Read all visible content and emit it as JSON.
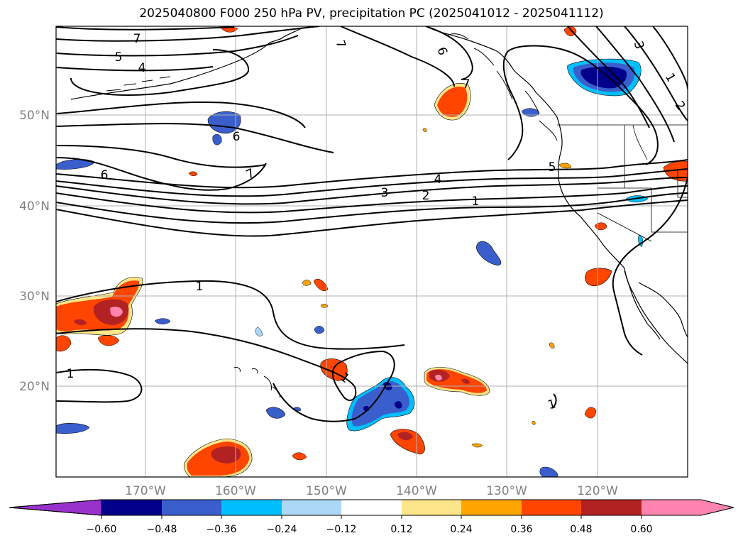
{
  "title": "2025040800 F000 250 hPa PV, precipitation PC (2025041012 - 2025041112)",
  "map": {
    "lat_labels": [
      "50°N",
      "40°N",
      "30°N",
      "20°N"
    ],
    "lon_labels": [
      "170°W",
      "160°W",
      "150°W",
      "140°W",
      "130°W",
      "120°W"
    ],
    "grid": true
  },
  "pv_contour_labels": [
    "7",
    "5",
    "4",
    "6",
    "7",
    "6",
    "7",
    "3",
    "1",
    "2",
    "6",
    "7",
    "5",
    "4",
    "3",
    "2",
    "1",
    "1",
    "1",
    "1",
    "1"
  ],
  "colorbar": {
    "ticks": [
      "−0.60",
      "−0.48",
      "−0.36",
      "−0.24",
      "−0.12",
      "0.12",
      "0.24",
      "0.36",
      "0.48",
      "0.60"
    ],
    "colors": [
      "#9932cc",
      "#00008b",
      "#3a5fcd",
      "#00bfff",
      "#add8f5",
      "#ffffff",
      "#fde68a",
      "#ffa500",
      "#ff4500",
      "#b22222",
      "#ff85b0"
    ],
    "extend": "both"
  },
  "colors": {
    "neg_strong": "#00008b",
    "neg_mid": "#3a5fcd",
    "neg_light": "#00bfff",
    "pos_light": "#fde68a",
    "pos_mid": "#ffa500",
    "pos_strong": "#ff4500",
    "pos_dark": "#b22222",
    "pos_max": "#ff85b0"
  }
}
